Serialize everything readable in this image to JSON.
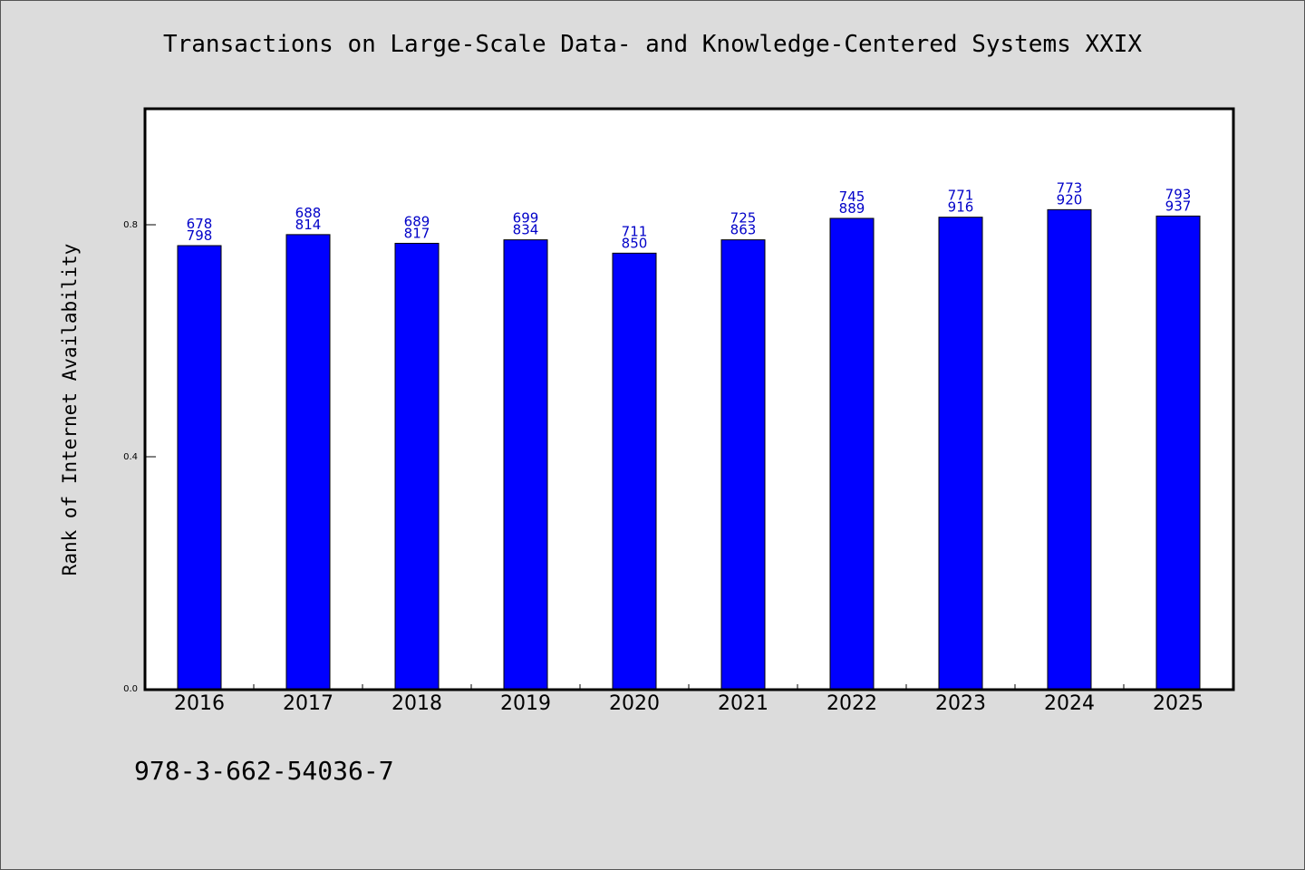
{
  "title": "Transactions on Large-Scale Data- and Knowledge-Centered Systems XXIX",
  "isbn": "978-3-662-54036-7",
  "chart_data": {
    "type": "bar",
    "ylabel": "Rank of Internet Availability",
    "xlabel": "",
    "ylim": [
      0,
      1
    ],
    "yticks": [
      "0.0",
      "0.4",
      "0.8"
    ],
    "categories": [
      "2016",
      "2017",
      "2018",
      "2019",
      "2020",
      "2021",
      "2022",
      "2023",
      "2024",
      "2025"
    ],
    "values": [
      0.764,
      0.783,
      0.768,
      0.774,
      0.751,
      0.774,
      0.811,
      0.813,
      0.826,
      0.815
    ],
    "labels_top": [
      "678",
      "688",
      "689",
      "699",
      "711",
      "725",
      "745",
      "771",
      "773",
      "793"
    ],
    "labels_bottom": [
      "798",
      "814",
      "817",
      "834",
      "850",
      "863",
      "889",
      "916",
      "920",
      "937"
    ],
    "bar_color": "#0000ff",
    "label_color": "#0000c8",
    "grid": false
  }
}
